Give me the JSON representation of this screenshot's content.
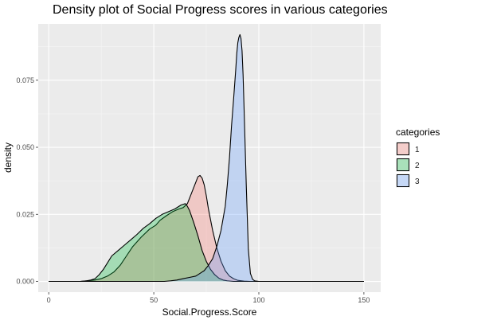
{
  "chart_data": {
    "type": "area",
    "title": "Density plot of Social Progress scores in various categories",
    "xlabel": "Social.Progress.Score",
    "ylabel": "density",
    "xlim": [
      -5,
      158
    ],
    "ylim": [
      -0.004,
      0.096
    ],
    "x_ticks": [
      0,
      50,
      100,
      150
    ],
    "x_tick_labels": [
      "0",
      "50",
      "100",
      "150"
    ],
    "y_ticks": [
      0.0,
      0.025,
      0.05,
      0.075
    ],
    "y_tick_labels": [
      "0.000",
      "0.025",
      "0.050",
      "0.075"
    ],
    "grid": true,
    "legend": {
      "title": "categories",
      "position": "right"
    },
    "series": [
      {
        "name": "1",
        "color": "#F8766D",
        "points": [
          [
            0,
            0
          ],
          [
            15,
            0
          ],
          [
            18,
            0.0002
          ],
          [
            22,
            0.0005
          ],
          [
            25,
            0.001
          ],
          [
            28,
            0.002
          ],
          [
            31,
            0.0035
          ],
          [
            34,
            0.006
          ],
          [
            37,
            0.0095
          ],
          [
            40,
            0.013
          ],
          [
            44,
            0.0165
          ],
          [
            48,
            0.0195
          ],
          [
            51,
            0.021
          ],
          [
            53,
            0.0228
          ],
          [
            56,
            0.0245
          ],
          [
            59,
            0.026
          ],
          [
            62,
            0.027
          ],
          [
            64,
            0.0275
          ],
          [
            66,
            0.029
          ],
          [
            68,
            0.033
          ],
          [
            70,
            0.037
          ],
          [
            71,
            0.039
          ],
          [
            72,
            0.0395
          ],
          [
            73,
            0.0385
          ],
          [
            74,
            0.036
          ],
          [
            75,
            0.032
          ],
          [
            76,
            0.027
          ],
          [
            78,
            0.019
          ],
          [
            80,
            0.0125
          ],
          [
            82,
            0.0075
          ],
          [
            84,
            0.004
          ],
          [
            86,
            0.002
          ],
          [
            88,
            0.001
          ],
          [
            90,
            0.0004
          ],
          [
            93,
            0.0001
          ],
          [
            96,
            0
          ],
          [
            150,
            0
          ]
        ]
      },
      {
        "name": "2",
        "color": "#00BA38",
        "points": [
          [
            0,
            0
          ],
          [
            15,
            0
          ],
          [
            18,
            0.0002
          ],
          [
            20,
            0.0005
          ],
          [
            22,
            0.001
          ],
          [
            24,
            0.0025
          ],
          [
            26,
            0.0045
          ],
          [
            28,
            0.007
          ],
          [
            30,
            0.0095
          ],
          [
            33,
            0.0115
          ],
          [
            36,
            0.0135
          ],
          [
            39,
            0.0155
          ],
          [
            42,
            0.0175
          ],
          [
            45,
            0.0198
          ],
          [
            48,
            0.0215
          ],
          [
            51,
            0.0235
          ],
          [
            54,
            0.025
          ],
          [
            57,
            0.026
          ],
          [
            60,
            0.027
          ],
          [
            63,
            0.0285
          ],
          [
            65,
            0.029
          ],
          [
            66,
            0.028
          ],
          [
            67,
            0.0265
          ],
          [
            69,
            0.022
          ],
          [
            71,
            0.017
          ],
          [
            73,
            0.0115
          ],
          [
            75,
            0.0075
          ],
          [
            77,
            0.0045
          ],
          [
            79,
            0.0025
          ],
          [
            81,
            0.0012
          ],
          [
            83,
            0.0005
          ],
          [
            85,
            0.0002
          ],
          [
            88,
            0
          ],
          [
            150,
            0
          ]
        ]
      },
      {
        "name": "3",
        "color": "#619CFF",
        "points": [
          [
            0,
            0
          ],
          [
            55,
            0
          ],
          [
            58,
            0.0002
          ],
          [
            61,
            0.0005
          ],
          [
            64,
            0.001
          ],
          [
            67,
            0.0015
          ],
          [
            70,
            0.002
          ],
          [
            72,
            0.003
          ],
          [
            74,
            0.004
          ],
          [
            76,
            0.006
          ],
          [
            78,
            0.0085
          ],
          [
            80,
            0.013
          ],
          [
            82,
            0.019
          ],
          [
            84,
            0.028
          ],
          [
            85,
            0.036
          ],
          [
            86,
            0.046
          ],
          [
            87,
            0.058
          ],
          [
            88,
            0.068
          ],
          [
            89,
            0.079
          ],
          [
            89.5,
            0.085
          ],
          [
            90,
            0.089
          ],
          [
            90.5,
            0.091
          ],
          [
            91,
            0.092
          ],
          [
            91.5,
            0.0905
          ],
          [
            92,
            0.086
          ],
          [
            92.5,
            0.077
          ],
          [
            93,
            0.064
          ],
          [
            94,
            0.036
          ],
          [
            95,
            0.012
          ],
          [
            96,
            0.003
          ],
          [
            97,
            0.0008
          ],
          [
            98,
            0.0002
          ],
          [
            100,
            0
          ],
          [
            150,
            0
          ]
        ]
      }
    ]
  }
}
